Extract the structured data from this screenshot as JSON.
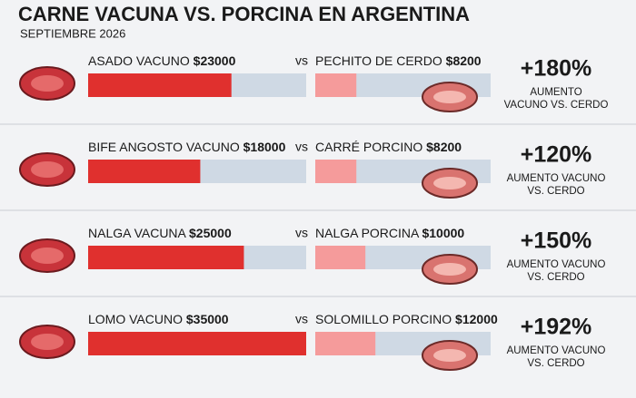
{
  "chart_data": {
    "type": "paired-bar",
    "title": "CARNE VACUNA VS. PORCINA EN ARGENTINA",
    "subtitle": "SEPTIEMBRE 2026",
    "xlim": [
      0,
      35000
    ],
    "beef_color": "#e0302e",
    "pork_color": "#f59b9b",
    "track_color": "#cfd9e4",
    "rows": [
      {
        "beef": {
          "name": "ASADO VACUNO",
          "value": 23000,
          "value_label": "$23000"
        },
        "vs": "vs",
        "pork": {
          "name": "PECHITO DE CERDO",
          "value": 8200,
          "value_label": "$8200"
        },
        "increase": {
          "value": 180,
          "value_label": "+180%"
        },
        "note": [
          "AUMENTO",
          "VACUNO VS. CERDO"
        ]
      },
      {
        "beef": {
          "name": "BIFE ANGOSTO VACUNO",
          "value": 18000,
          "value_label": "$18000"
        },
        "vs": "vs",
        "pork": {
          "name": "CARRÉ PORCINO",
          "value": 8200,
          "value_label": "$8200"
        },
        "increase": {
          "value": 120,
          "value_label": "+120%"
        },
        "note": [
          "AUMENTO VACUNO",
          "VS. CERDO"
        ]
      },
      {
        "beef": {
          "name": "NALGA VACUNA",
          "value": 25000,
          "value_label": "$25000"
        },
        "vs": "vs",
        "pork": {
          "name": "NALGA PORCINA",
          "value": 10000,
          "value_label": "$10000"
        },
        "increase": {
          "value": 150,
          "value_label": "+150%"
        },
        "note": [
          "AUMENTO VACUNO",
          "VS. CERDO"
        ]
      },
      {
        "beef": {
          "name": "LOMO VACUNO",
          "value": 35000,
          "value_label": "$35000"
        },
        "vs": "vs",
        "pork": {
          "name": "SOLOMILLO PORCINO",
          "value": 12000,
          "value_label": "$12000"
        },
        "increase": {
          "value": 192,
          "value_label": "+192%"
        },
        "note": [
          "AUMENTO VACUNO",
          "VS. CERDO"
        ]
      }
    ]
  }
}
